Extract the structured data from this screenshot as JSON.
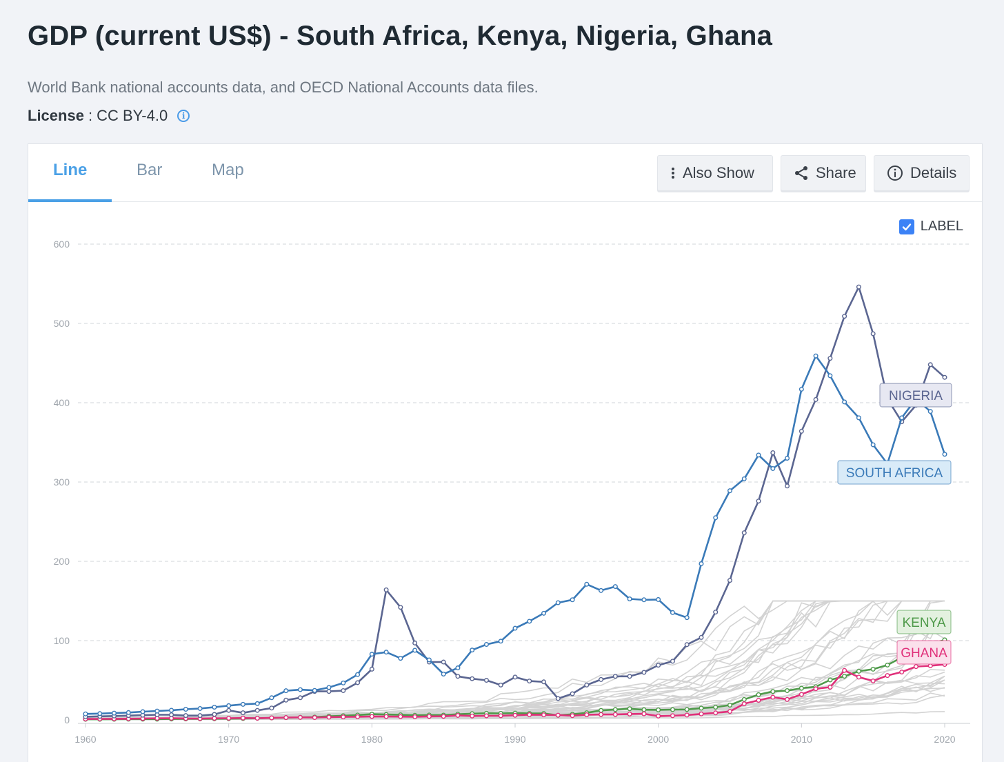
{
  "page": {
    "title": "GDP (current US$) - South Africa, Kenya, Nigeria, Ghana",
    "source": "World Bank national accounts data, and OECD National Accounts data files.",
    "license_label": "License",
    "license_sep": ":",
    "license_value": "CC BY-4.0"
  },
  "tabs": [
    {
      "label": "Line",
      "active": true
    },
    {
      "label": "Bar",
      "active": false
    },
    {
      "label": "Map",
      "active": false
    }
  ],
  "toolbar": {
    "also_show": "Also Show",
    "share": "Share",
    "details": "Details"
  },
  "label_toggle": {
    "text": "LABEL",
    "checked": true
  },
  "colors": {
    "accent": "#4aa0e6",
    "nigeria": "#5b6691",
    "south_africa": "#3a7ab8",
    "kenya": "#4f9a4a",
    "ghana": "#e0307a",
    "others": "#d0d0d0"
  },
  "chart_data": {
    "type": "line",
    "title": "",
    "xlabel": "",
    "ylabel": "",
    "xlim": [
      1960,
      2020
    ],
    "ylim": [
      0,
      600
    ],
    "x_ticks": [
      1960,
      1970,
      1980,
      1990,
      2000,
      2010,
      2020
    ],
    "y_ticks": [
      0,
      100,
      200,
      300,
      400,
      500,
      600
    ],
    "grid": "horizontal dashed",
    "years": [
      1960,
      1961,
      1962,
      1963,
      1964,
      1965,
      1966,
      1967,
      1968,
      1969,
      1970,
      1971,
      1972,
      1973,
      1974,
      1975,
      1976,
      1977,
      1978,
      1979,
      1980,
      1981,
      1982,
      1983,
      1984,
      1985,
      1986,
      1987,
      1988,
      1989,
      1990,
      1991,
      1992,
      1993,
      1994,
      1995,
      1996,
      1997,
      1998,
      1999,
      2000,
      2001,
      2002,
      2003,
      2004,
      2005,
      2006,
      2007,
      2008,
      2009,
      2010,
      2011,
      2012,
      2013,
      2014,
      2015,
      2016,
      2017,
      2018,
      2019,
      2020
    ],
    "series": [
      {
        "name": "NIGERIA",
        "color": "#5b6691",
        "label_bg": "#e7e8f2",
        "values": [
          4,
          4.5,
          5,
          5.5,
          6,
          6.5,
          6.5,
          5.5,
          5.5,
          7,
          12,
          9,
          12,
          15,
          25,
          28,
          36,
          36,
          37,
          47,
          64,
          164,
          142,
          97,
          73,
          73,
          55,
          52,
          50,
          44,
          54,
          49,
          48,
          27,
          33,
          44,
          51,
          55,
          55,
          60,
          69,
          74,
          95,
          104,
          136,
          176,
          236,
          276,
          337,
          295,
          364,
          404,
          456,
          509,
          546,
          487,
          405,
          376,
          397,
          448,
          432
        ]
      },
      {
        "name": "SOUTH AFRICA",
        "color": "#3a7ab8",
        "label_bg": "#d9ebf8",
        "values": [
          7.6,
          8,
          8.6,
          9.3,
          10.4,
          11.2,
          12.2,
          13.5,
          14.4,
          16.1,
          18,
          19.7,
          20.6,
          28,
          36.8,
          38.2,
          37.2,
          41,
          46.6,
          57.2,
          82.9,
          85.5,
          77.7,
          87.8,
          75.7,
          57.8,
          65.6,
          88.1,
          95.2,
          99.3,
          115.6,
          124.4,
          134.5,
          147.8,
          151.5,
          171.1,
          163.2,
          168.2,
          152.6,
          151.5,
          151.8,
          135.4,
          129,
          197,
          255,
          289,
          304,
          334,
          317,
          330,
          417,
          459,
          434,
          401,
          381,
          347,
          323,
          381,
          405,
          389,
          335
        ]
      },
      {
        "name": "KENYA",
        "color": "#4f9a4a",
        "label_bg": "#e3f1df",
        "values": [
          0.8,
          0.8,
          0.9,
          1,
          1,
          1,
          1.2,
          1.3,
          1.4,
          1.5,
          1.6,
          1.8,
          2.1,
          2.5,
          2.9,
          3.3,
          3.6,
          4.6,
          5.3,
          6.2,
          7.3,
          6.9,
          6.4,
          5.9,
          6.2,
          6.1,
          7.2,
          7.9,
          8.4,
          8.3,
          8.6,
          8.2,
          8.2,
          5.8,
          7.1,
          9,
          12,
          13.1,
          14.1,
          12.9,
          12.7,
          13,
          13.2,
          14.9,
          16.1,
          18.7,
          25.8,
          31.9,
          35.9,
          37,
          40,
          41.9,
          50.4,
          55.1,
          61.4,
          64,
          69.2,
          78.8,
          87.8,
          95.5,
          101
        ]
      },
      {
        "name": "GHANA",
        "color": "#e0307a",
        "label_bg": "#fbe0ec",
        "values": [
          1.2,
          1.3,
          1.4,
          1.5,
          1.7,
          2,
          2.1,
          1.8,
          1.7,
          2,
          2.2,
          2.4,
          2.2,
          2.6,
          3,
          3.2,
          3,
          3.5,
          3.8,
          4,
          4.4,
          4.3,
          4.2,
          4,
          4.4,
          4.5,
          5.7,
          5,
          5.2,
          5.3,
          5.9,
          6.6,
          6.4,
          6,
          5.4,
          6.5,
          6.9,
          6.9,
          7.5,
          7.7,
          4.9,
          5.3,
          6.2,
          7.6,
          8.9,
          10.7,
          20.4,
          24.8,
          28.7,
          25.9,
          32.2,
          39.3,
          41.3,
          62.4,
          54,
          49.2,
          56,
          60.4,
          67.3,
          68.3,
          70
        ]
      }
    ],
    "background_series_note": "Other countries shown as light gray lines"
  }
}
